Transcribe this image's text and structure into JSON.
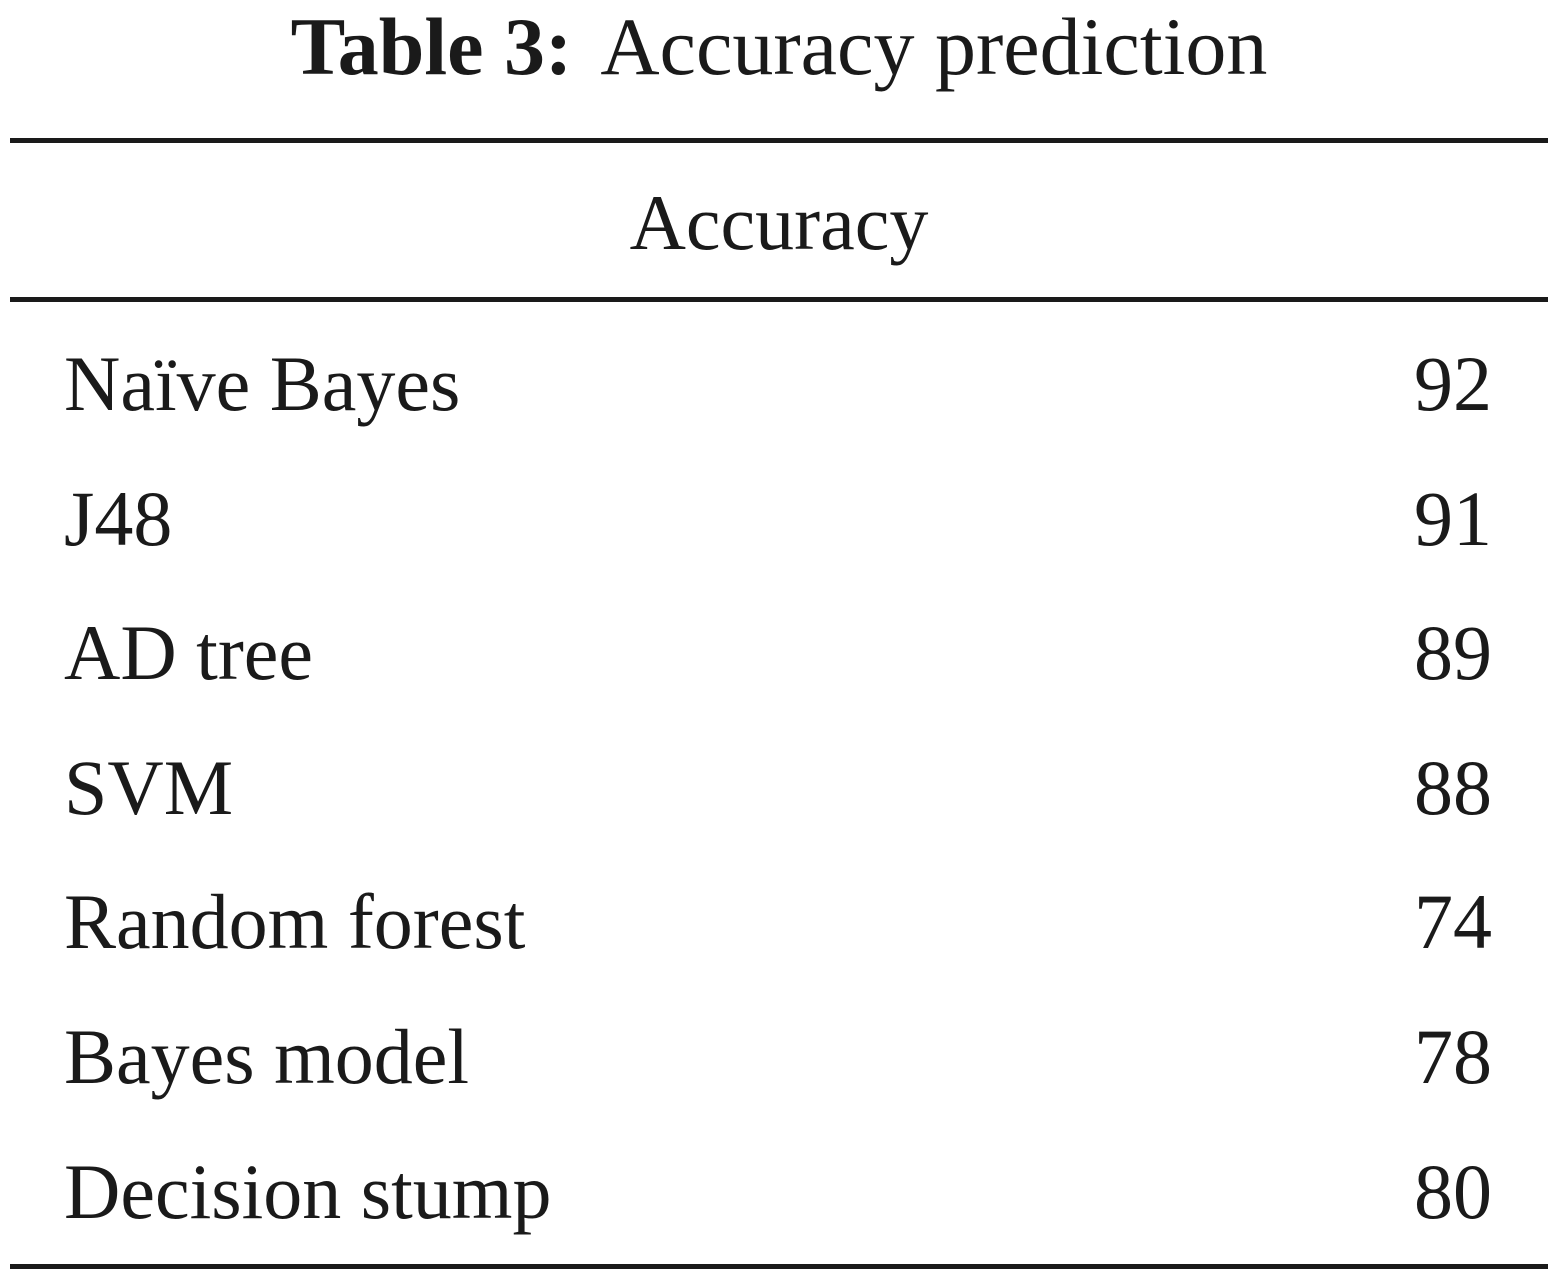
{
  "table": {
    "caption_label": "Table 3:",
    "caption_text": "Accuracy prediction",
    "header": "Accuracy",
    "rows": [
      {
        "model": "Naïve Bayes",
        "accuracy": "92"
      },
      {
        "model": "J48",
        "accuracy": "91"
      },
      {
        "model": "AD tree",
        "accuracy": "89"
      },
      {
        "model": "SVM",
        "accuracy": "88"
      },
      {
        "model": "Random forest",
        "accuracy": "74"
      },
      {
        "model": "Bayes model",
        "accuracy": "78"
      },
      {
        "model": "Decision stump",
        "accuracy": "80"
      }
    ]
  }
}
